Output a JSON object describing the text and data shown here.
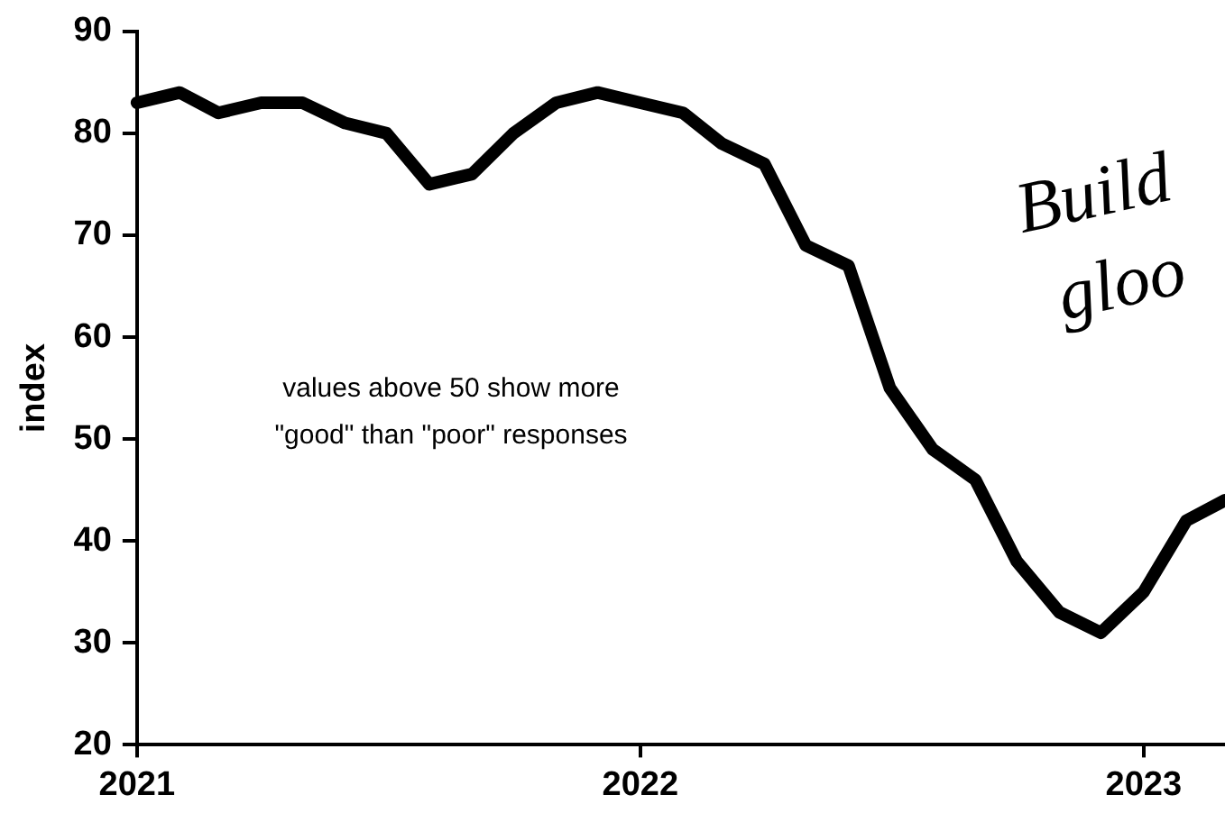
{
  "chart_data": {
    "type": "line",
    "ylabel": "index",
    "x": [
      "2021-01",
      "2021-02",
      "2021-03",
      "2021-04",
      "2021-05",
      "2021-06",
      "2021-07",
      "2021-08",
      "2021-09",
      "2021-10",
      "2021-11",
      "2021-12",
      "2022-01",
      "2022-02",
      "2022-03",
      "2022-04",
      "2022-05",
      "2022-06",
      "2022-07",
      "2022-08",
      "2022-09",
      "2022-10",
      "2022-11",
      "2022-12",
      "2023-01",
      "2023-02",
      "2023-03"
    ],
    "series": [
      {
        "color": "#000000",
        "values": [
          83,
          84,
          82,
          83,
          83,
          81,
          80,
          75,
          76,
          80,
          83,
          84,
          83,
          82,
          79,
          77,
          69,
          67,
          55,
          49,
          46,
          38,
          33,
          31,
          35,
          42,
          44
        ]
      }
    ],
    "xlim": [
      "2021-01",
      "2023-03"
    ],
    "xticks": [
      "2021",
      "2022",
      "2023"
    ],
    "ylim": [
      20,
      90
    ],
    "yticks": [
      20,
      30,
      40,
      50,
      60,
      70,
      80,
      90
    ],
    "grid": false,
    "legend": false,
    "marker": "none",
    "line_style": "solid",
    "annotations": [
      "values above 50 show more\n\"good\" than \"poor\" responses",
      "Build\ngloo"
    ]
  }
}
